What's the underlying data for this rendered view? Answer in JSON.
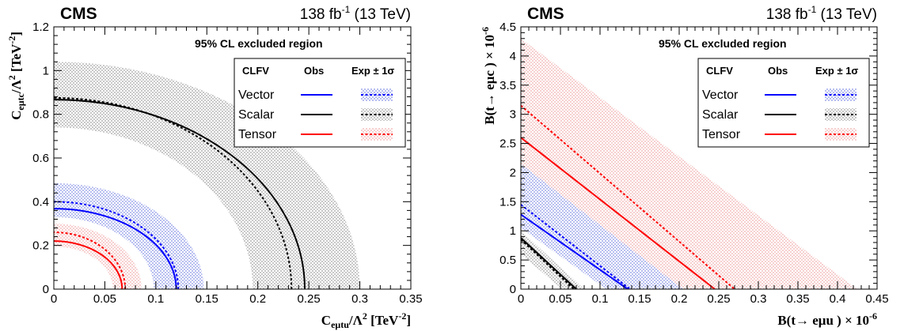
{
  "chart_data": [
    {
      "type": "line",
      "experiment": "CMS",
      "lumi": "138 fb",
      "lumi_sup": "-1",
      "energy": "(13 TeV)",
      "xlabel": "C",
      "xlabel_sub": "eμtu",
      "xlabel_tail": "/Λ",
      "xlabel_tail_sup": "2",
      "xlabel_unit": " [TeV",
      "xlabel_unit_sup": "-2",
      "xlabel_unit_end": "]",
      "ylabel": "C",
      "ylabel_sub": "eμtc",
      "ylabel_tail": "/Λ",
      "ylabel_tail_sup": "2",
      "ylabel_unit": " [TeV",
      "ylabel_unit_sup": "-2",
      "ylabel_unit_end": "]",
      "xlim": [
        0,
        0.35
      ],
      "ylim": [
        0,
        1.2
      ],
      "xticks": [
        "0",
        "0.05",
        "0.1",
        "0.15",
        "0.2",
        "0.25",
        "0.3",
        "0.35"
      ],
      "xtick_values": [
        0,
        0.05,
        0.1,
        0.15,
        0.2,
        0.25,
        0.3,
        0.35
      ],
      "yticks": [
        "0",
        "0.2",
        "0.4",
        "0.6",
        "0.8",
        "1",
        "1.2"
      ],
      "ytick_values": [
        0,
        0.2,
        0.4,
        0.6,
        0.8,
        1.0,
        1.2
      ],
      "legend_title": "95% CL excluded region",
      "legend_headers": [
        "CLFV",
        "Obs",
        "Exp ± 1σ"
      ],
      "legend_position": "top-right",
      "series": [
        {
          "name": "Vector",
          "color": "#0000ff",
          "band": "#b8bff0",
          "obs_x": 0.12,
          "obs_y": 0.368,
          "exp_x": 0.122,
          "exp_y": 0.4,
          "band_x": [
            0.098,
            0.147
          ],
          "band_y": [
            0.33,
            0.485
          ]
        },
        {
          "name": "Scalar",
          "color": "#000000",
          "band": "#c8c8c8",
          "obs_x": 0.246,
          "obs_y": 0.867,
          "exp_x": 0.233,
          "exp_y": 0.875,
          "band_x": [
            0.195,
            0.3
          ],
          "band_y": [
            0.74,
            1.04
          ]
        },
        {
          "name": "Tensor",
          "color": "#ff0000",
          "band": "#f7d0d0",
          "obs_x": 0.067,
          "obs_y": 0.22,
          "exp_x": 0.07,
          "exp_y": 0.26,
          "band_x": [
            0.058,
            0.086
          ],
          "band_y": [
            0.195,
            0.3
          ]
        }
      ]
    },
    {
      "type": "line",
      "experiment": "CMS",
      "lumi": "138 fb",
      "lumi_sup": "-1",
      "energy": "(13 TeV)",
      "xlabel": "B(t→ eμu )",
      "xlabel_mult": " × 10",
      "xlabel_exp": "-6",
      "ylabel": "B(t→ eμc )",
      "ylabel_mult": " × 10",
      "ylabel_exp": "-6",
      "xlim": [
        0,
        0.45
      ],
      "ylim": [
        0,
        4.5
      ],
      "xticks": [
        "0",
        "0.05",
        "0.1",
        "0.15",
        "0.2",
        "0.25",
        "0.3",
        "0.35",
        "0.4",
        "0.45"
      ],
      "xtick_values": [
        0,
        0.05,
        0.1,
        0.15,
        0.2,
        0.25,
        0.3,
        0.35,
        0.4,
        0.45
      ],
      "yticks": [
        "0",
        "0.5",
        "1",
        "1.5",
        "2",
        "2.5",
        "3",
        "3.5",
        "4",
        "4.5"
      ],
      "ytick_values": [
        0,
        0.5,
        1,
        1.5,
        2,
        2.5,
        3,
        3.5,
        4,
        4.5
      ],
      "legend_title": "95% CL excluded region",
      "legend_headers": [
        "CLFV",
        "Obs",
        "Exp ± 1σ"
      ],
      "legend_position": "top-right",
      "series": [
        {
          "name": "Vector",
          "color": "#0000ff",
          "band": "#b8bff0",
          "obs_x": 0.135,
          "obs_y": 1.28,
          "exp_x": 0.138,
          "exp_y": 1.45,
          "band_x": [
            0.108,
            0.205
          ],
          "band_y": [
            1.05,
            2.15
          ]
        },
        {
          "name": "Scalar",
          "color": "#000000",
          "band": "#c8c8c8",
          "obs_x": 0.07,
          "obs_y": 0.88,
          "exp_x": 0.067,
          "exp_y": 0.85,
          "band_x": [
            0.052,
            0.08
          ],
          "band_y": [
            0.6,
            1.0
          ]
        },
        {
          "name": "Tensor",
          "color": "#ff0000",
          "band": "#f7d0d0",
          "obs_x": 0.245,
          "obs_y": 2.6,
          "exp_x": 0.27,
          "exp_y": 3.15,
          "band_x": [
            0.195,
            0.425
          ],
          "band_y": [
            2.0,
            4.3
          ]
        }
      ]
    }
  ]
}
